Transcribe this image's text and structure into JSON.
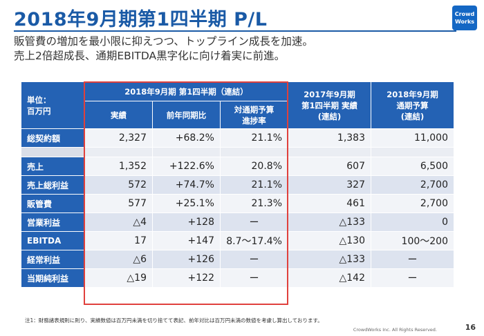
{
  "header": {
    "title": "2018年9月期第1四半期 P/L",
    "logo_line1": "Crowd",
    "logo_line2": "Works"
  },
  "subtitle": {
    "line1": "販管費の増加を最小限に抑えつつ、トップライン成長を加速。",
    "line2": "売上2倍超成長、通期EBITDA黒字化に向け着実に前進。"
  },
  "table": {
    "unit_label_1": "単位：",
    "unit_label_2": "百万円",
    "group_header": "2018年9月期 第1四半期（連結）",
    "col_actual": "実績",
    "col_yoy": "前年同期比",
    "col_progress_1": "対通期予算",
    "col_progress_2": "進捗率",
    "col_prev_1": "2017年9月期",
    "col_prev_2": "第1四半期 実績",
    "col_prev_3": "(連結)",
    "col_budget_1": "2018年9月期",
    "col_budget_2": "通期予算",
    "col_budget_3": "(連結)",
    "rows": [
      {
        "label": "総契約額",
        "actual": "2,327",
        "yoy": "+68.2%",
        "progress": "21.1%",
        "prev": "1,383",
        "budget": "11,000"
      },
      {
        "label": "売上",
        "actual": "1,352",
        "yoy": "+122.6%",
        "progress": "20.8%",
        "prev": "607",
        "budget": "6,500"
      },
      {
        "label": "売上総利益",
        "actual": "572",
        "yoy": "+74.7%",
        "progress": "21.1%",
        "prev": "327",
        "budget": "2,700"
      },
      {
        "label": "販管費",
        "actual": "577",
        "yoy": "+25.1%",
        "progress": "21.3%",
        "prev": "461",
        "budget": "2,700"
      },
      {
        "label": "営業利益",
        "actual": "△4",
        "yoy": "+128",
        "progress": "ー",
        "prev": "△133",
        "budget": "0"
      },
      {
        "label": "EBITDA",
        "actual": "17",
        "yoy": "+147",
        "progress": "8.7〜17.4%",
        "prev": "△130",
        "budget": "100〜200"
      },
      {
        "label": "経常利益",
        "actual": "△6",
        "yoy": "+126",
        "progress": "ー",
        "prev": "△133",
        "budget": "ー"
      },
      {
        "label": "当期純利益",
        "actual": "△19",
        "yoy": "+122",
        "progress": "ー",
        "prev": "△142",
        "budget": "ー"
      }
    ]
  },
  "footer": {
    "note": "注1：財務諸表規則に則り、実績数値は百万円未満を切り捨てて表記、前年対比は百万円未満の数値を考慮し算出しております。",
    "copyright": "CrowdWorks Inc. All Rights Reserved.",
    "page_number": "16"
  }
}
